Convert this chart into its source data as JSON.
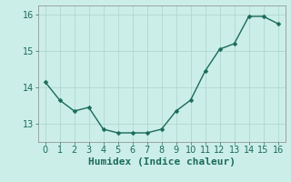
{
  "x": [
    0,
    1,
    2,
    3,
    4,
    5,
    6,
    7,
    8,
    9,
    10,
    11,
    12,
    13,
    14,
    15,
    16
  ],
  "y": [
    14.15,
    13.65,
    13.35,
    13.45,
    12.85,
    12.75,
    12.75,
    12.75,
    12.85,
    13.35,
    13.65,
    14.45,
    15.05,
    15.2,
    15.95,
    15.95,
    15.75
  ],
  "line_color": "#1a6b5a",
  "marker": "D",
  "marker_size": 2.5,
  "bg_color": "#cceee8",
  "grid_color": "#b0d8d0",
  "xlabel": "Humidex (Indice chaleur)",
  "xlabel_fontsize": 8,
  "tick_fontsize": 7,
  "xlim": [
    -0.5,
    16.5
  ],
  "ylim": [
    12.5,
    16.25
  ],
  "yticks": [
    13,
    14,
    15,
    16
  ],
  "xticks": [
    0,
    1,
    2,
    3,
    4,
    5,
    6,
    7,
    8,
    9,
    10,
    11,
    12,
    13,
    14,
    15,
    16
  ],
  "line_width": 1.0,
  "spine_color": "#888888"
}
